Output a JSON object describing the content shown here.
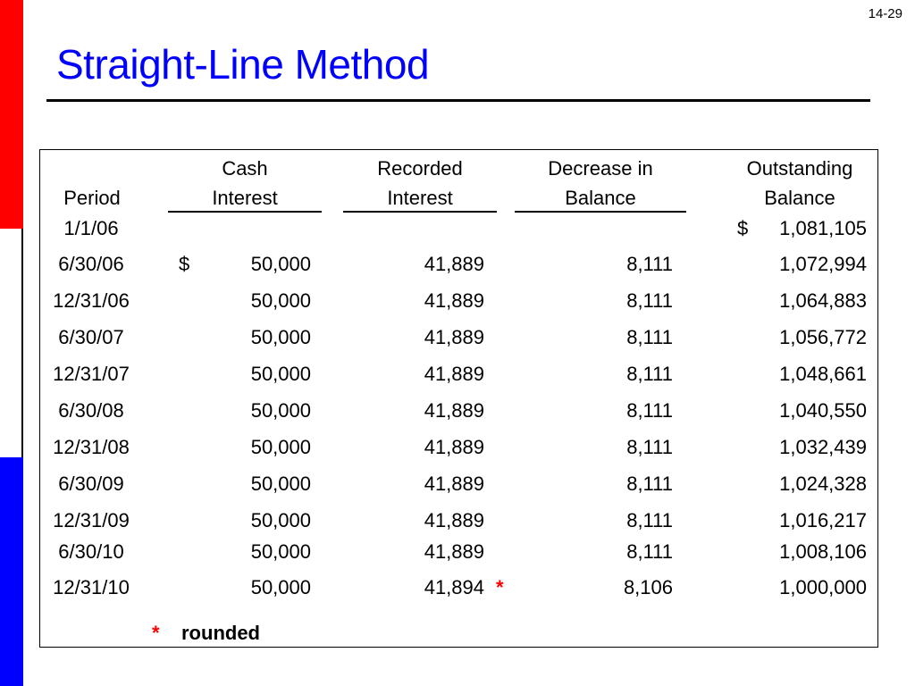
{
  "slide_number": "14-29",
  "title": "Straight-Line Method",
  "headers": {
    "period": "Period",
    "cash_1": "Cash",
    "cash_2": "Interest",
    "recorded_1": "Recorded",
    "recorded_2": "Interest",
    "decrease_1": "Decrease in",
    "decrease_2": "Balance",
    "outstanding_1": "Outstanding",
    "outstanding_2": "Balance"
  },
  "dollar_sign": "$",
  "rows": [
    {
      "period": "1/1/06",
      "cash": "",
      "recorded": "",
      "decrease": "",
      "balance": "1,081,105"
    },
    {
      "period": "6/30/06",
      "cash": "50,000",
      "recorded": "41,889",
      "decrease": "8,111",
      "balance": "1,072,994"
    },
    {
      "period": "12/31/06",
      "cash": "50,000",
      "recorded": "41,889",
      "decrease": "8,111",
      "balance": "1,064,883"
    },
    {
      "period": "6/30/07",
      "cash": "50,000",
      "recorded": "41,889",
      "decrease": "8,111",
      "balance": "1,056,772"
    },
    {
      "period": "12/31/07",
      "cash": "50,000",
      "recorded": "41,889",
      "decrease": "8,111",
      "balance": "1,048,661"
    },
    {
      "period": "6/30/08",
      "cash": "50,000",
      "recorded": "41,889",
      "decrease": "8,111",
      "balance": "1,040,550"
    },
    {
      "period": "12/31/08",
      "cash": "50,000",
      "recorded": "41,889",
      "decrease": "8,111",
      "balance": "1,032,439"
    },
    {
      "period": "6/30/09",
      "cash": "50,000",
      "recorded": "41,889",
      "decrease": "8,111",
      "balance": "1,024,328"
    },
    {
      "period": "12/31/09",
      "cash": "50,000",
      "recorded": "41,889",
      "decrease": "8,111",
      "balance": "1,016,217"
    },
    {
      "period": "6/30/10",
      "cash": "50,000",
      "recorded": "41,889",
      "decrease": "8,111",
      "balance": "1,008,106"
    },
    {
      "period": "12/31/10",
      "cash": "50,000",
      "recorded": "41,894",
      "decrease": "8,106",
      "balance": "1,000,000"
    }
  ],
  "rounded_marker": "*",
  "footnote_marker": "*",
  "footnote_text": "rounded",
  "colors": {
    "title": "#0000ff",
    "asterisk": "#ff0000",
    "bar_top": "#ff0000",
    "bar_bottom": "#0000ff"
  }
}
